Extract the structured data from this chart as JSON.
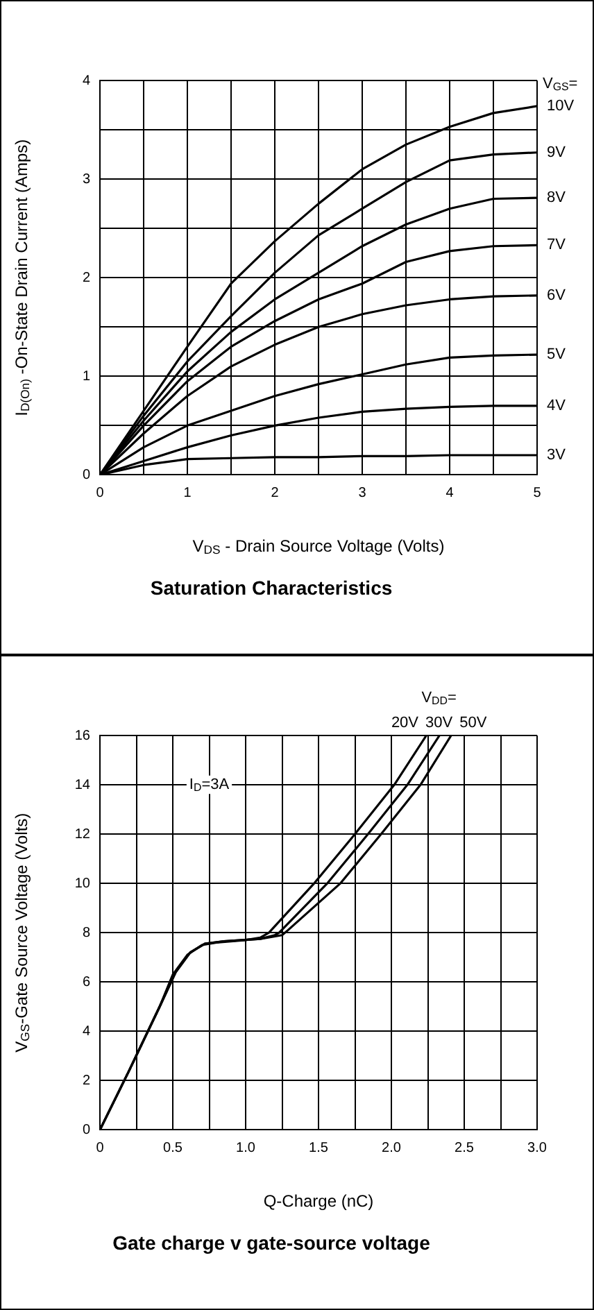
{
  "chart_data": [
    {
      "type": "line",
      "title": "Saturation Characteristics",
      "xlabel": "V$_{DS}$ - Drain Source Voltage (Volts)",
      "ylabel": "I$_{D(On)}$ -On-State Drain Current (Amps)",
      "legend_title": "V$_{GS}$=",
      "x": [
        0,
        0.5,
        1,
        1.5,
        2,
        2.5,
        3,
        3.5,
        4,
        4.5,
        5
      ],
      "series": [
        {
          "name": "10V",
          "color": "#000000",
          "values": [
            0,
            0.65,
            1.3,
            1.94,
            2.37,
            2.75,
            3.1,
            3.35,
            3.53,
            3.67,
            3.74
          ]
        },
        {
          "name": "9V",
          "color": "#000000",
          "values": [
            0,
            0.6,
            1.15,
            1.61,
            2.05,
            2.43,
            2.7,
            2.97,
            3.19,
            3.25,
            3.27
          ]
        },
        {
          "name": "8V",
          "color": "#000000",
          "values": [
            0,
            0.55,
            1.05,
            1.45,
            1.78,
            2.05,
            2.32,
            2.54,
            2.7,
            2.8,
            2.81
          ]
        },
        {
          "name": "7V",
          "color": "#000000",
          "values": [
            0,
            0.5,
            0.95,
            1.3,
            1.56,
            1.78,
            1.94,
            2.16,
            2.27,
            2.32,
            2.33
          ]
        },
        {
          "name": "6V",
          "color": "#000000",
          "values": [
            0,
            0.42,
            0.8,
            1.1,
            1.32,
            1.5,
            1.63,
            1.72,
            1.78,
            1.81,
            1.82
          ]
        },
        {
          "name": "5V",
          "color": "#000000",
          "values": [
            0,
            0.28,
            0.5,
            0.65,
            0.8,
            0.92,
            1.02,
            1.12,
            1.19,
            1.21,
            1.22
          ]
        },
        {
          "name": "4V",
          "color": "#000000",
          "values": [
            0,
            0.14,
            0.28,
            0.4,
            0.5,
            0.58,
            0.64,
            0.67,
            0.69,
            0.7,
            0.7
          ]
        },
        {
          "name": "3V",
          "color": "#000000",
          "values": [
            0,
            0.1,
            0.16,
            0.17,
            0.18,
            0.18,
            0.19,
            0.19,
            0.2,
            0.2,
            0.2
          ]
        }
      ],
      "xlim": [
        0,
        5
      ],
      "xticks": [
        0,
        {
          "value": 0.5,
          "label": null
        },
        1,
        {
          "value": 1.5,
          "label": null
        },
        2,
        {
          "value": 2.5,
          "label": null
        },
        3,
        {
          "value": 3.5,
          "label": null
        },
        4,
        {
          "value": 4.5,
          "label": null
        },
        5
      ],
      "ylim": [
        0,
        4
      ],
      "yticks": [
        0,
        {
          "value": 0.5,
          "label": null
        },
        1,
        {
          "value": 1.5,
          "label": null
        },
        2,
        {
          "value": 2.5,
          "label": null
        },
        3,
        {
          "value": 3.5,
          "label": null
        },
        4
      ],
      "grid": true
    },
    {
      "type": "line",
      "title": "Gate charge v gate-source voltage",
      "xlabel": "Q-Charge (nC)",
      "ylabel": "V$_{GS}$-Gate Source Voltage (Volts)",
      "legend_title": "V$_{DD}$=",
      "annotations": [
        "I$_{D}$=3A"
      ],
      "series": [
        {
          "name": "20V",
          "color": "#000000",
          "x": [
            0,
            0.2,
            0.41,
            0.5,
            0.6,
            0.7,
            0.8,
            1.0,
            1.1,
            1.16,
            1.47,
            1.75,
            2.02,
            2.24
          ],
          "values": [
            0,
            2.4,
            5,
            6.3,
            7.1,
            7.5,
            7.6,
            7.7,
            7.8,
            8,
            10,
            12,
            14,
            16
          ]
        },
        {
          "name": "30V",
          "color": "#000000",
          "x": [
            0,
            0.2,
            0.41,
            0.52,
            0.62,
            0.72,
            0.85,
            1.1,
            1.2,
            1.23,
            1.56,
            1.84,
            2.11,
            2.33
          ],
          "values": [
            0,
            2.4,
            5,
            6.4,
            7.2,
            7.55,
            7.65,
            7.75,
            7.9,
            8,
            10,
            12,
            14,
            16
          ]
        },
        {
          "name": "50V",
          "color": "#000000",
          "x": [
            0,
            0.2,
            0.41,
            0.52,
            0.62,
            0.72,
            0.85,
            1.1,
            1.25,
            1.29,
            1.65,
            1.93,
            2.2,
            2.41
          ],
          "values": [
            0,
            2.4,
            5,
            6.4,
            7.2,
            7.55,
            7.65,
            7.75,
            7.9,
            8.1,
            10,
            12,
            14,
            16
          ]
        }
      ],
      "xlim": [
        0,
        3
      ],
      "xticks": [
        0,
        {
          "value": 0.25,
          "label": null
        },
        0.5,
        {
          "value": 0.75,
          "label": null
        },
        {
          "value": 1,
          "label": "1.0"
        },
        {
          "value": 1.25,
          "label": null
        },
        1.5,
        {
          "value": 1.75,
          "label": null
        },
        {
          "value": 2,
          "label": "2.0"
        },
        {
          "value": 2.25,
          "label": null
        },
        2.5,
        {
          "value": 2.75,
          "label": null
        },
        {
          "value": 3,
          "label": "3.0"
        }
      ],
      "ylim": [
        0,
        16
      ],
      "yticks": [
        0,
        2,
        4,
        6,
        8,
        10,
        12,
        14,
        16
      ],
      "grid": true
    }
  ]
}
